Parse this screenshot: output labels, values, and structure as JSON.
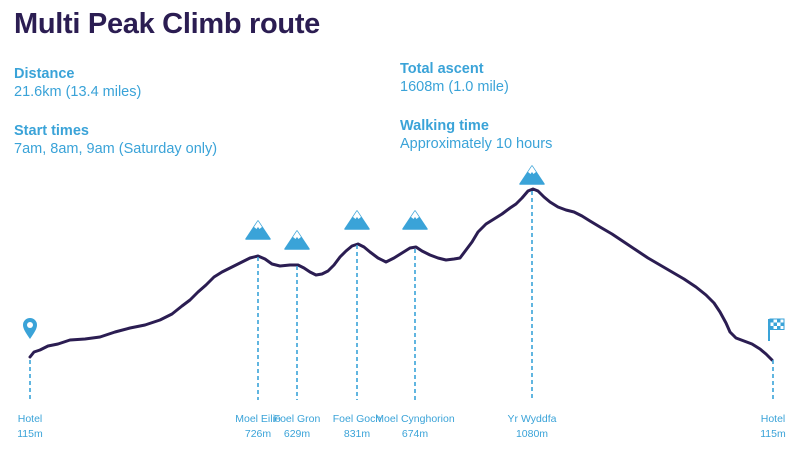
{
  "header": {
    "title": "Multi Peak Climb route"
  },
  "info": {
    "distance": {
      "label": "Distance",
      "value": "21.6km (13.4 miles)"
    },
    "start_times": {
      "label": "Start times",
      "value": "7am, 8am, 9am (Saturday only)"
    },
    "total_ascent": {
      "label": "Total ascent",
      "value": "1608m (1.0 mile)"
    },
    "walking_time": {
      "label": "Walking time",
      "value": "Approximately 10 hours"
    }
  },
  "colors": {
    "title": "#2b1d52",
    "profile_line": "#2b1d52",
    "accent": "#3aa3d8"
  },
  "chart_data": {
    "type": "line",
    "title": "",
    "xlabel": "",
    "ylabel": "",
    "grid": false,
    "legend": "none",
    "ylim": [
      115,
      1080
    ],
    "points": [
      {
        "name": "Hotel",
        "elevation": "115m",
        "value": 115,
        "icon": "location-pin-icon"
      },
      {
        "name": "Moel Eilio",
        "elevation": "726m",
        "value": 726,
        "icon": "mountain-icon"
      },
      {
        "name": "Foel Gron",
        "elevation": "629m",
        "value": 629,
        "icon": "mountain-icon"
      },
      {
        "name": "Foel Goch",
        "elevation": "831m",
        "value": 831,
        "icon": "mountain-icon"
      },
      {
        "name": "Moel Cynghorion",
        "elevation": "674m",
        "value": 674,
        "icon": "mountain-icon"
      },
      {
        "name": "Yr Wyddfa",
        "elevation": "1080m",
        "value": 1080,
        "icon": "mountain-icon"
      },
      {
        "name": "Hotel",
        "elevation": "115m",
        "value": 115,
        "icon": "finish-flag-icon"
      }
    ]
  }
}
